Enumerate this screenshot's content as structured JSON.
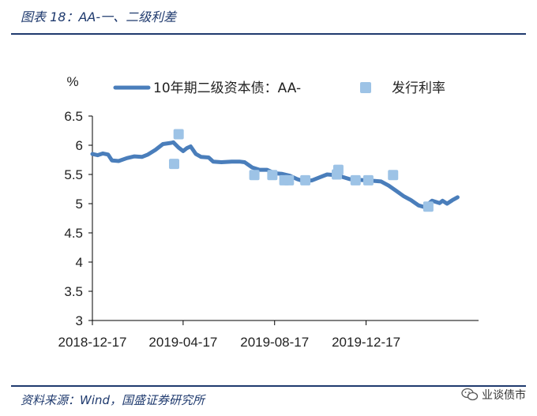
{
  "figure": {
    "title": "图表 18：AA-一、二级利差",
    "source": "资料来源：Wind，国盛证券研究所",
    "watermark": "业谈债市",
    "watermark_icon": "wechat-icon"
  },
  "chart_data": {
    "type": "line",
    "ylabel": "%",
    "ylim": [
      3,
      6.5
    ],
    "yticks": [
      "6.5",
      "6",
      "5.5",
      "5",
      "4.5",
      "4",
      "3.5",
      "3"
    ],
    "xlim": [
      "2018-12-17",
      "2020-05-15"
    ],
    "xticks": [
      "2018-12-17",
      "2019-04-17",
      "2019-08-17",
      "2019-12-17"
    ],
    "grid": false,
    "legend_position": "top",
    "series": [
      {
        "name": "10年期二级资本债：AA-",
        "kind": "line",
        "color": "#4a7ebb",
        "points": [
          [
            "2018-12-17",
            5.85
          ],
          [
            "2018-12-24",
            5.83
          ],
          [
            "2018-12-31",
            5.86
          ],
          [
            "2019-01-07",
            5.84
          ],
          [
            "2019-01-12",
            5.74
          ],
          [
            "2019-01-21",
            5.73
          ],
          [
            "2019-02-01",
            5.78
          ],
          [
            "2019-02-11",
            5.81
          ],
          [
            "2019-02-21",
            5.8
          ],
          [
            "2019-03-01",
            5.84
          ],
          [
            "2019-03-11",
            5.92
          ],
          [
            "2019-03-21",
            6.02
          ],
          [
            "2019-04-01",
            6.04
          ],
          [
            "2019-04-04",
            6.05
          ],
          [
            "2019-04-11",
            5.96
          ],
          [
            "2019-04-17",
            5.9
          ],
          [
            "2019-04-22",
            5.95
          ],
          [
            "2019-04-27",
            5.98
          ],
          [
            "2019-05-04",
            5.85
          ],
          [
            "2019-05-11",
            5.8
          ],
          [
            "2019-05-21",
            5.79
          ],
          [
            "2019-05-27",
            5.72
          ],
          [
            "2019-06-07",
            5.71
          ],
          [
            "2019-06-21",
            5.72
          ],
          [
            "2019-07-01",
            5.72
          ],
          [
            "2019-07-08",
            5.71
          ],
          [
            "2019-07-18",
            5.62
          ],
          [
            "2019-07-28",
            5.58
          ],
          [
            "2019-08-07",
            5.58
          ],
          [
            "2019-08-12",
            5.55
          ],
          [
            "2019-08-17",
            5.52
          ],
          [
            "2019-08-27",
            5.51
          ],
          [
            "2019-09-06",
            5.48
          ],
          [
            "2019-09-16",
            5.42
          ],
          [
            "2019-09-26",
            5.38
          ],
          [
            "2019-10-06",
            5.4
          ],
          [
            "2019-10-16",
            5.45
          ],
          [
            "2019-10-26",
            5.5
          ],
          [
            "2019-11-05",
            5.49
          ],
          [
            "2019-11-15",
            5.46
          ],
          [
            "2019-11-25",
            5.42
          ],
          [
            "2019-12-05",
            5.41
          ],
          [
            "2019-12-17",
            5.4
          ],
          [
            "2019-12-27",
            5.39
          ],
          [
            "2020-01-06",
            5.38
          ],
          [
            "2020-01-16",
            5.31
          ],
          [
            "2020-01-26",
            5.22
          ],
          [
            "2020-02-05",
            5.13
          ],
          [
            "2020-02-15",
            5.06
          ],
          [
            "2020-02-25",
            4.97
          ],
          [
            "2020-03-04",
            4.94
          ],
          [
            "2020-03-14",
            5.05
          ],
          [
            "2020-03-24",
            5.01
          ],
          [
            "2020-03-28",
            5.05
          ],
          [
            "2020-04-03",
            5.0
          ],
          [
            "2020-04-10",
            5.06
          ],
          [
            "2020-04-17",
            5.11
          ]
        ]
      },
      {
        "name": "发行利率",
        "kind": "scatter",
        "color": "#9dc3e6",
        "points": [
          [
            "2019-04-05",
            5.68
          ],
          [
            "2019-04-11",
            6.19
          ],
          [
            "2019-07-21",
            5.49
          ],
          [
            "2019-08-14",
            5.49
          ],
          [
            "2019-08-30",
            5.4
          ],
          [
            "2019-09-05",
            5.4
          ],
          [
            "2019-09-27",
            5.4
          ],
          [
            "2019-11-08",
            5.5
          ],
          [
            "2019-11-10",
            5.58
          ],
          [
            "2019-12-03",
            5.4
          ],
          [
            "2019-12-20",
            5.4
          ],
          [
            "2020-01-22",
            5.49
          ],
          [
            "2020-03-09",
            4.95
          ]
        ]
      }
    ]
  }
}
